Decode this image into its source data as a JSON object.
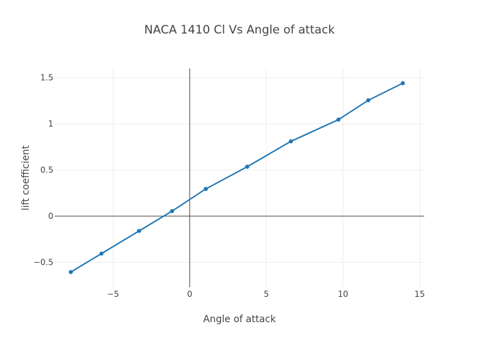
{
  "chart_data": {
    "type": "line",
    "title": "NACA 1410 Cl Vs Angle of attack",
    "xlabel": "Angle of attack",
    "ylabel": "lift coefficient",
    "xlim": [
      -8.8,
      15.3
    ],
    "ylim": [
      -0.77,
      1.6
    ],
    "x_ticks": [
      -5,
      0,
      5,
      10,
      15
    ],
    "x_tick_labels": [
      "−5",
      "0",
      "5",
      "10",
      "15"
    ],
    "y_ticks": [
      -0.5,
      0,
      0.5,
      1,
      1.5
    ],
    "y_tick_labels": [
      "−0.5",
      "0",
      "0.5",
      "1",
      "1.5"
    ],
    "grid": true,
    "legend": "none",
    "series": [
      {
        "color": "#1f77b4",
        "x": [
          -7.75,
          -5.75,
          -3.3,
          -1.15,
          1.05,
          3.75,
          6.6,
          9.7,
          11.65,
          13.9
        ],
        "y": [
          -0.605,
          -0.405,
          -0.16,
          0.055,
          0.295,
          0.535,
          0.81,
          1.045,
          1.255,
          1.44
        ]
      }
    ]
  }
}
